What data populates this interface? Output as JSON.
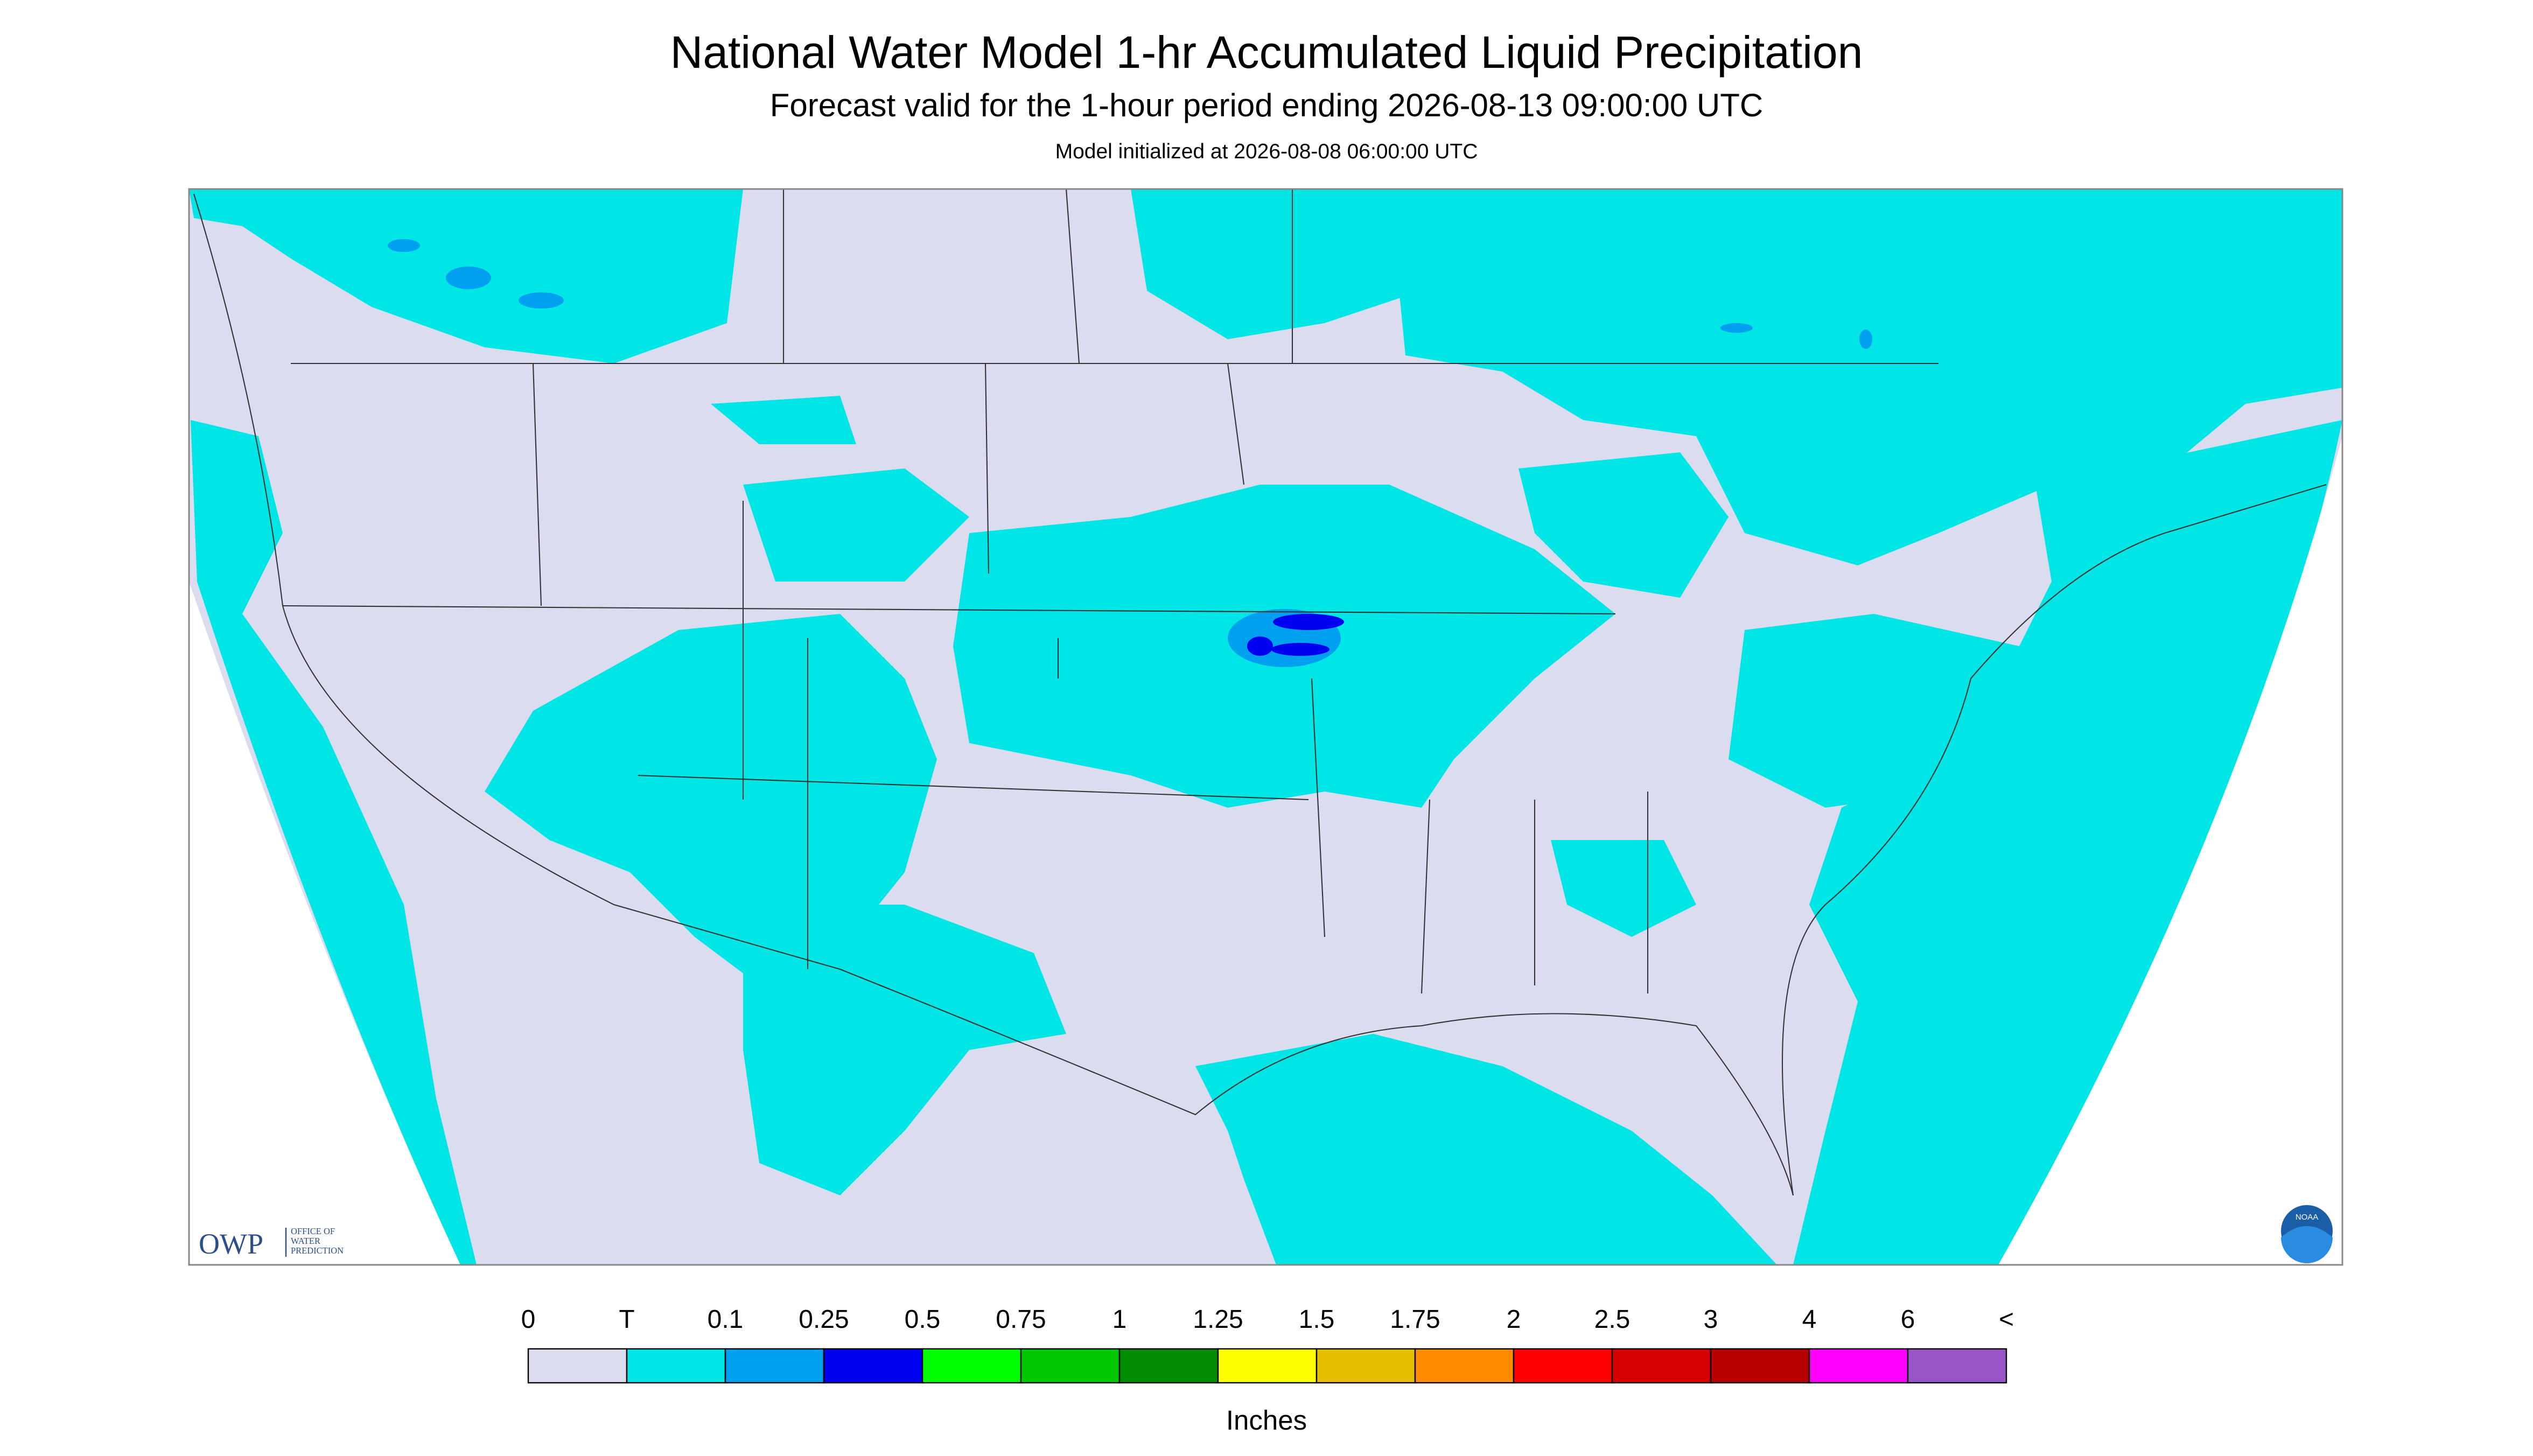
{
  "header": {
    "title": "National Water Model 1-hr Accumulated Liquid Precipitation",
    "subtitle": "Forecast valid for the 1-hour period ending 2026-08-13 09:00:00 UTC",
    "note": "Model initialized at 2026-08-08 06:00:00 UTC"
  },
  "logo": {
    "name": "OWP",
    "text": [
      "OFFICE OF",
      "WATER",
      "PREDICTION"
    ],
    "badge": "NOAA"
  },
  "legend": {
    "labels": [
      "0",
      "T",
      "0.1",
      "0.25",
      "0.5",
      "0.75",
      "1",
      "1.25",
      "1.5",
      "1.75",
      "2",
      "2.5",
      "3",
      "4",
      "6",
      "<"
    ],
    "colors": [
      "#dcdcf0",
      "#00e5e5",
      "#00a0f0",
      "#0000f0",
      "#00ff00",
      "#00c800",
      "#008c00",
      "#ffff00",
      "#e6c000",
      "#ff8c00",
      "#ff0000",
      "#d70000",
      "#b80000",
      "#ff00ff",
      "#9955c8"
    ],
    "units": "Inches"
  }
}
